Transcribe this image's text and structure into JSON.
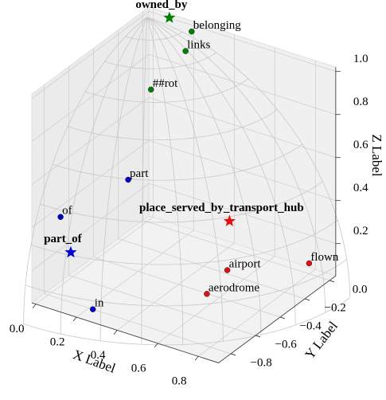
{
  "chart_data": {
    "type": "scatter3d",
    "xlabel": "X Label",
    "ylabel": "Y Label",
    "zlabel": "Z Label",
    "xlim": [
      -0.02,
      0.9
    ],
    "ylim": [
      -0.9,
      0.05
    ],
    "zlim": [
      0.05,
      1.02
    ],
    "xticks": [
      {
        "value": 0.0,
        "label": "0.0"
      },
      0.2,
      0.4,
      0.6,
      0.8
    ],
    "yticks": [
      {
        "value": 0.0,
        "label": "0.0"
      },
      {
        "value": -0.2,
        "label": "−0.2"
      },
      {
        "value": -0.4,
        "label": "−0.4"
      },
      {
        "value": -0.6,
        "label": "−0.6"
      },
      {
        "value": -0.8,
        "label": "−0.8"
      }
    ],
    "zticks": [
      0.2,
      0.4,
      0.6,
      0.8,
      {
        "value": 1.0,
        "label": "1.0"
      }
    ],
    "grid": true,
    "series": [
      {
        "color": "#008000",
        "labels": [
          "owned_by",
          "belonging",
          "links",
          "##rot"
        ],
        "markers": [
          "star",
          "circle",
          "circle",
          "circle"
        ],
        "x": [
          0.05,
          0.19,
          0.16,
          0.02
        ],
        "y": [
          0.1,
          0.05,
          0.05,
          0.0
        ],
        "z": [
          0.97,
          0.97,
          0.87,
          0.67
        ]
      },
      {
        "color": "#0000cc",
        "labels": [
          "part_of",
          "part",
          "of",
          "in"
        ],
        "markers": [
          "star",
          "circle",
          "circle",
          "circle"
        ],
        "x": [
          0.02,
          0.09,
          0.0,
          0.22
        ],
        "y": [
          -0.65,
          -0.3,
          -0.7,
          -0.8
        ],
        "z": [
          0.19,
          0.4,
          0.37,
          0.05
        ]
      },
      {
        "color": "#e01010",
        "labels": [
          "place_served_by_transport_hub",
          "airport",
          "aerodrome",
          "flown"
        ],
        "markers": [
          "star",
          "circle",
          "circle",
          "circle"
        ],
        "x": [
          0.65,
          0.7,
          0.66,
          0.86
        ],
        "y": [
          -0.4,
          -0.5,
          -0.6,
          -0.1
        ],
        "z": [
          0.42,
          0.25,
          0.17,
          0.16
        ]
      }
    ]
  }
}
